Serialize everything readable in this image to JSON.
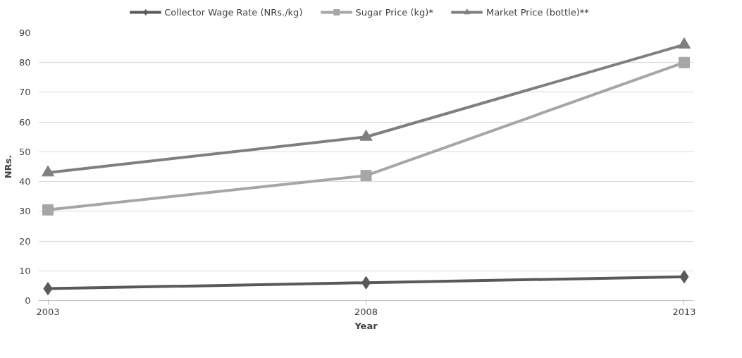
{
  "chart_data": {
    "type": "line",
    "xlabel": "Year",
    "ylabel": "NRs.",
    "categories": [
      "2003",
      "2008",
      "2013"
    ],
    "ylim": [
      0,
      90
    ],
    "yticks": [
      0,
      10,
      20,
      30,
      40,
      50,
      60,
      70,
      80,
      90
    ],
    "grid": "y",
    "legend": "top",
    "line_style": "solid",
    "series": [
      {
        "name": "Collector Wage Rate (NRs./kg)",
        "color": "#595959",
        "marker": "diamond",
        "values": [
          4,
          6,
          8
        ]
      },
      {
        "name": "Sugar Price (kg)*",
        "color": "#a6a6a6",
        "marker": "square",
        "values": [
          30.5,
          42,
          80
        ]
      },
      {
        "name": "Market Price (bottle)**",
        "color": "#7f7f7f",
        "marker": "triangle",
        "values": [
          43,
          55,
          86
        ]
      }
    ]
  }
}
